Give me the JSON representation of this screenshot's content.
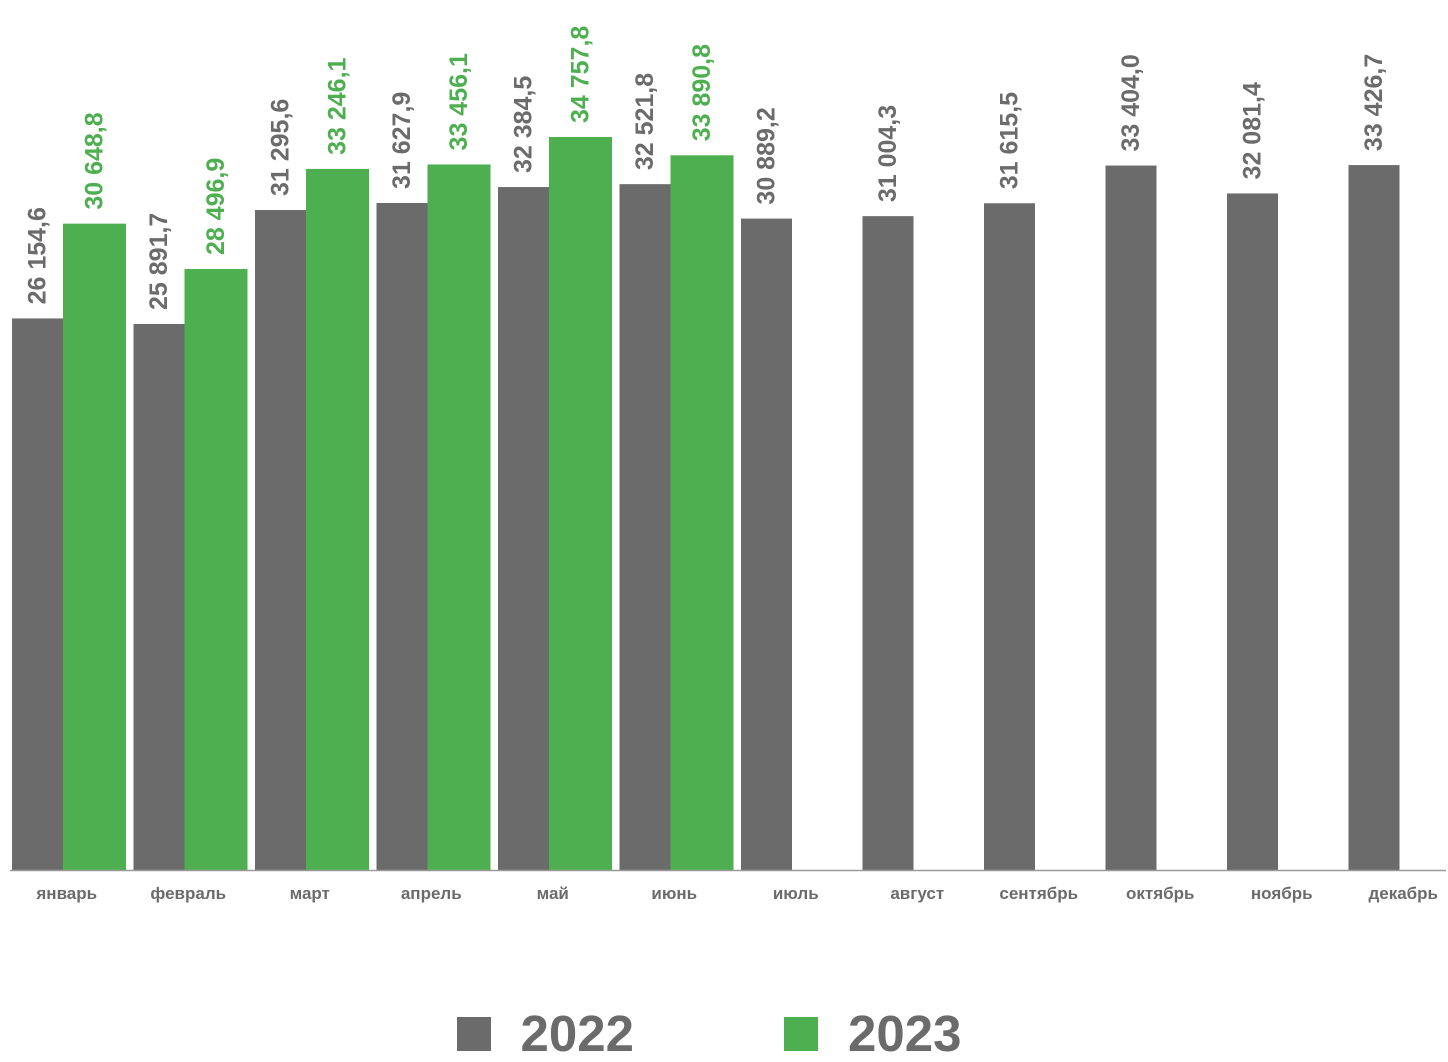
{
  "colors": {
    "series_2022": "#6b6b6b",
    "series_2023": "#4daf4f",
    "axis": "#9a9a9a",
    "category_label": "#6b6b6b"
  },
  "legend": {
    "items": [
      {
        "label": "2022",
        "color": "#6b6b6b"
      },
      {
        "label": "2023",
        "color": "#4daf4f"
      }
    ]
  },
  "chart_data": {
    "type": "bar",
    "title": "",
    "xlabel": "",
    "ylabel": "",
    "grid": false,
    "legend_position": "bottom",
    "ylim": [
      0,
      34757.8
    ],
    "categories": [
      "январь",
      "февраль",
      "март",
      "апрель",
      "май",
      "июнь",
      "июль",
      "август",
      "сентябрь",
      "октябрь",
      "ноябрь",
      "декабрь"
    ],
    "series": [
      {
        "name": "2022",
        "color": "#6b6b6b",
        "values": [
          26154.6,
          25891.7,
          31295.6,
          31627.9,
          32384.5,
          32521.8,
          30889.2,
          31004.3,
          31615.5,
          33404.0,
          32081.4,
          33426.7
        ],
        "labels": [
          "26 154,6",
          "25 891,7",
          "31 295,6",
          "31 627,9",
          "32 384,5",
          "32 521,8",
          "30 889,2",
          "31 004,3",
          "31 615,5",
          "33 404,0",
          "32 081,4",
          "33 426,7"
        ]
      },
      {
        "name": "2023",
        "color": "#4daf4f",
        "values": [
          30648.8,
          28496.9,
          33246.1,
          33456.1,
          34757.8,
          33890.8,
          null,
          null,
          null,
          null,
          null,
          null
        ],
        "labels": [
          "30 648,8",
          "28 496,9",
          "33 246,1",
          "33 456,1",
          "34 757,8",
          "33 890,8",
          null,
          null,
          null,
          null,
          null,
          null
        ]
      }
    ]
  }
}
